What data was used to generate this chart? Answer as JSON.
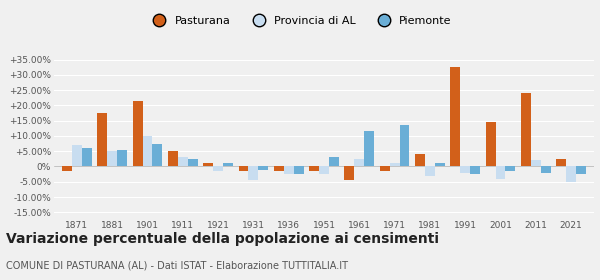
{
  "years": [
    1871,
    1881,
    1901,
    1911,
    1921,
    1931,
    1936,
    1951,
    1961,
    1971,
    1981,
    1991,
    2001,
    2011,
    2021
  ],
  "pasturana": [
    -1.5,
    17.5,
    21.5,
    5.0,
    1.0,
    -1.5,
    -1.5,
    -1.5,
    -4.5,
    -1.5,
    4.0,
    32.5,
    14.5,
    24.0,
    2.5
  ],
  "provincia_al": [
    7.0,
    5.0,
    10.0,
    3.0,
    -1.5,
    -4.5,
    -2.5,
    -2.5,
    2.5,
    1.0,
    -3.0,
    -2.0,
    -4.0,
    2.0,
    -5.0
  ],
  "piemonte": [
    6.0,
    5.5,
    7.5,
    2.5,
    1.0,
    -1.0,
    -2.5,
    3.0,
    11.5,
    13.5,
    1.0,
    -2.5,
    -1.5,
    -2.0,
    -2.5
  ],
  "pasturana_color": "#d2601a",
  "provincia_al_color": "#c8ddf0",
  "piemonte_color": "#6aaed6",
  "legend_labels": [
    "Pasturana",
    "Provincia di AL",
    "Piemonte"
  ],
  "yticks": [
    -15,
    -10,
    -5,
    0,
    5,
    10,
    15,
    20,
    25,
    30,
    35
  ],
  "ytick_labels": [
    "-15.00%",
    "-10.00%",
    "-5.00%",
    "0%",
    "+5.00%",
    "+10.00%",
    "+15.00%",
    "+20.00%",
    "+25.00%",
    "+30.00%",
    "+35.00%"
  ],
  "title": "Variazione percentuale della popolazione ai censimenti",
  "subtitle": "COMUNE DI PASTURANA (AL) - Dati ISTAT - Elaborazione TUTTITALIA.IT",
  "bg_color": "#f0f0f0",
  "grid_color": "#ffffff",
  "title_fontsize": 10,
  "subtitle_fontsize": 7
}
